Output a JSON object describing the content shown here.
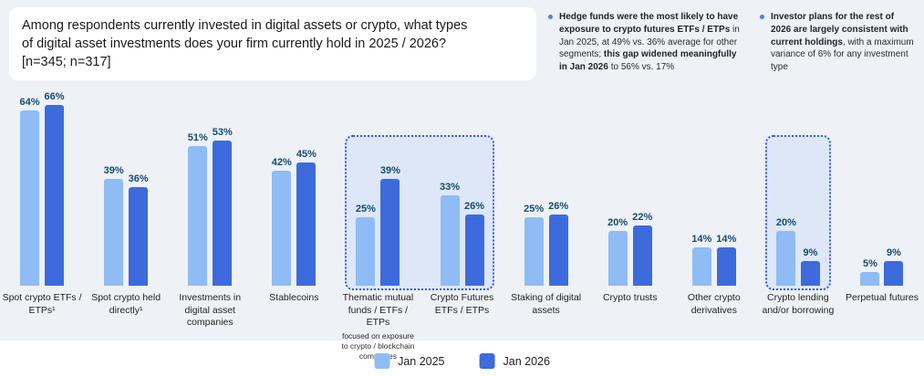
{
  "title": "Among respondents currently invested in digital assets or crypto, what types\nof digital asset investments does your firm currently hold in 2025 / 2026?\n[n=345; n=317]",
  "annotations": [
    {
      "segments": [
        {
          "text": "Hedge funds were the most likely to have exposure to crypto futures ETFs / ETPs",
          "bold": true
        },
        {
          "text": " in Jan 2025, at 49% vs. 36% average for other segments; ",
          "bold": false
        },
        {
          "text": "this gap widened meaningfully in Jan 2026",
          "bold": true
        },
        {
          "text": " to 56% vs. 17%",
          "bold": false
        }
      ]
    },
    {
      "segments": [
        {
          "text": "Investor plans for the rest of 2026 are largely consistent with current holdings",
          "bold": true
        },
        {
          "text": ", with a maximum variance of 6% for any investment type",
          "bold": false
        }
      ]
    }
  ],
  "chart_data": {
    "type": "bar",
    "title": "Among respondents currently invested in digital assets or crypto, what types of digital asset investments does your firm currently hold in 2025 / 2026? [n=345; n=317]",
    "value_suffix": "%",
    "ylim": [
      0,
      70
    ],
    "grid": false,
    "legend_position": "bottom",
    "categories": [
      {
        "label": "Spot crypto ETFs / ETPs¹",
        "sub": ""
      },
      {
        "label": "Spot crypto held directly¹",
        "sub": ""
      },
      {
        "label": "Investments in digital asset companies",
        "sub": ""
      },
      {
        "label": "Stablecoins",
        "sub": ""
      },
      {
        "label": "Thematic mutual funds / ETFs / ETPs",
        "sub": "focused on exposure to crypto / blockchain companies"
      },
      {
        "label": "Crypto Futures ETFs / ETPs",
        "sub": ""
      },
      {
        "label": "Staking of digital assets",
        "sub": ""
      },
      {
        "label": "Crypto trusts",
        "sub": ""
      },
      {
        "label": "Other crypto derivatives",
        "sub": ""
      },
      {
        "label": "Crypto lending and/or borrowing",
        "sub": ""
      },
      {
        "label": "Perpetual futures",
        "sub": ""
      }
    ],
    "series": [
      {
        "name": "Jan 2025",
        "color": "#8FBCF4",
        "values": [
          64,
          39,
          51,
          42,
          25,
          33,
          25,
          20,
          14,
          20,
          5
        ]
      },
      {
        "name": "Jan 2026",
        "color": "#3D6BDC",
        "values": [
          66,
          36,
          53,
          45,
          39,
          26,
          26,
          22,
          14,
          9,
          9
        ]
      }
    ],
    "highlights": [
      {
        "from": 4,
        "to": 5
      },
      {
        "from": 9,
        "to": 9
      }
    ]
  },
  "colors": {
    "background": "#eef1f5",
    "value_label": "#134c70",
    "highlight_border": "#2d5ce0",
    "highlight_fill": "#d0def7",
    "bullet": "#4a80ee"
  }
}
